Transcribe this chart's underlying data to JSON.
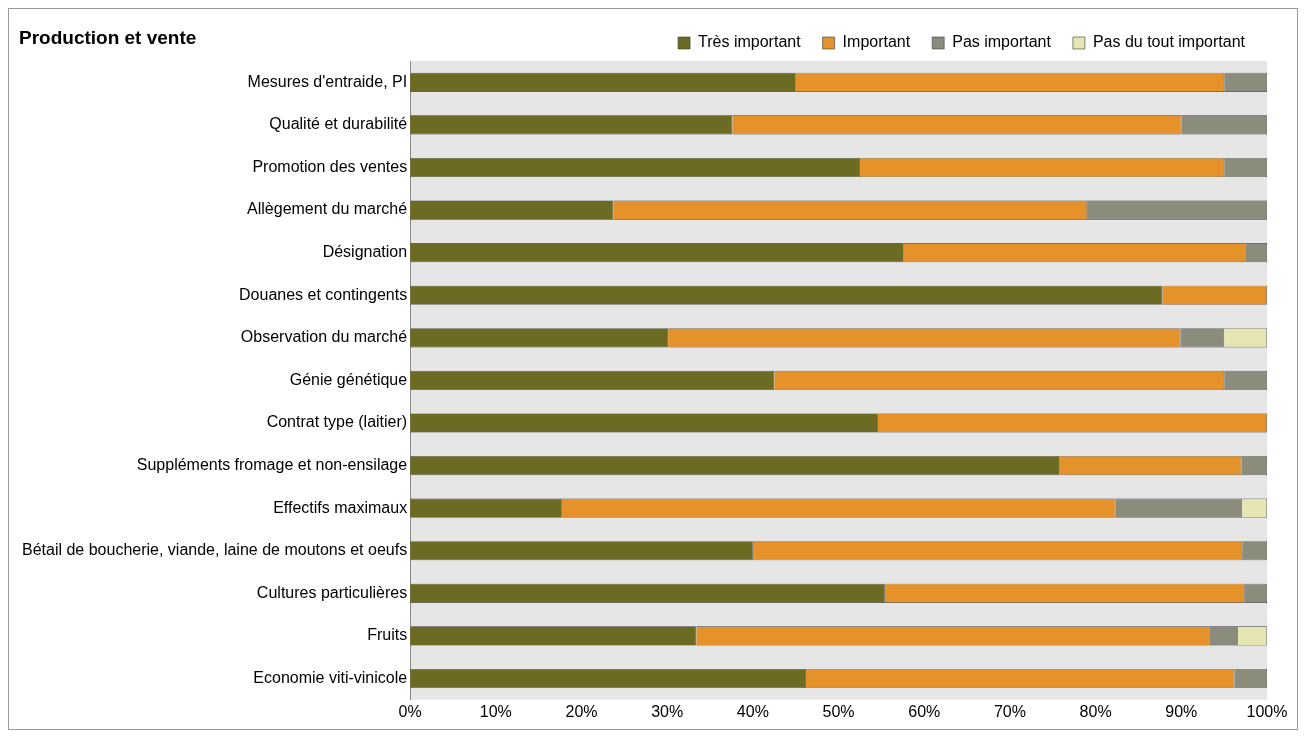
{
  "chart_data": {
    "type": "bar",
    "orientation": "horizontal",
    "stacked": true,
    "title": "Production et vente",
    "categories": [
      "Mesures d'entraide, PI",
      "Qualité et durabilité",
      "Promotion des ventes",
      "Allègement du marché",
      "Désignation",
      "Douanes et contingents",
      "Observation du marché",
      "Génie génétique",
      "Contrat type (laitier)",
      "Suppléments fromage et non-ensilage",
      "Effectifs maximaux",
      "Bétail de boucherie, viande, laine de moutons et oeufs",
      "Cultures particulières",
      "Fruits",
      "Economie viti-vinicole"
    ],
    "series": [
      {
        "name": "Très important",
        "color": "#6b6b24",
        "values": [
          45,
          37.6,
          52.5,
          23.7,
          57.6,
          87.8,
          30.1,
          42.5,
          54.6,
          75.8,
          17.7,
          40,
          55.4,
          33.4,
          46.2
        ]
      },
      {
        "name": "Important",
        "color": "#e5922a",
        "values": [
          50,
          52.4,
          42.5,
          55.3,
          39.9,
          12.2,
          59.8,
          52.5,
          45.4,
          21.2,
          64.6,
          57.1,
          42,
          59.9,
          50
        ]
      },
      {
        "name": "Pas important",
        "color": "#8c8c7c",
        "values": [
          5,
          10,
          5,
          21,
          2.5,
          0,
          5.1,
          5,
          0,
          3,
          14.8,
          2.9,
          2.6,
          3.3,
          3.8
        ]
      },
      {
        "name": "Pas du tout important",
        "color": "#e6e6b4",
        "values": [
          0,
          0,
          0,
          0,
          0,
          0,
          5,
          0,
          0,
          0,
          2.9,
          0,
          0,
          3.4,
          0
        ]
      }
    ],
    "xlim": [
      0,
      100
    ],
    "xticks": [
      {
        "value": 0,
        "label": "0%"
      },
      {
        "value": 10,
        "label": "10%"
      },
      {
        "value": 20,
        "label": "20%"
      },
      {
        "value": 30,
        "label": "30%"
      },
      {
        "value": 40,
        "label": "40%"
      },
      {
        "value": 50,
        "label": "50%"
      },
      {
        "value": 60,
        "label": "60%"
      },
      {
        "value": 70,
        "label": "70%"
      },
      {
        "value": 80,
        "label": "80%"
      },
      {
        "value": 90,
        "label": "90%"
      },
      {
        "value": 100,
        "label": "100%"
      }
    ],
    "grid": false,
    "legend": "top right"
  }
}
